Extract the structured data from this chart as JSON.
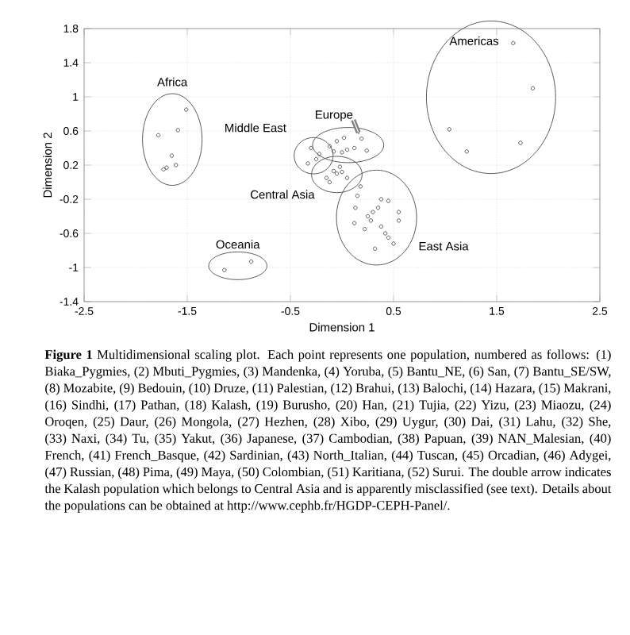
{
  "chart_data": {
    "type": "scatter",
    "xlabel": "Dimension 1",
    "ylabel": "Dimension 2",
    "xlim": [
      -2.5,
      2.5
    ],
    "ylim": [
      -1.4,
      1.8
    ],
    "xticks": [
      -2.5,
      -1.5,
      -0.5,
      0.5,
      1.5,
      2.5
    ],
    "yticks": [
      -1.4,
      -1,
      -0.6,
      -0.2,
      0.2,
      0.6,
      1,
      1.4,
      1.8
    ],
    "grid": true,
    "marker": "circle",
    "series": [
      {
        "name": "Africa",
        "color": "#333333",
        "x": [
          -1.59,
          -1.78,
          -1.7,
          -1.61,
          -1.73,
          -1.51,
          -1.65
        ],
        "values": [
          0.61,
          0.55,
          0.17,
          0.2,
          0.15,
          0.85,
          0.31
        ]
      },
      {
        "name": "Middle East",
        "color": "#333333",
        "x": [
          -0.3,
          -0.22,
          -0.33,
          -0.25
        ],
        "values": [
          0.4,
          0.33,
          0.22,
          0.27
        ]
      },
      {
        "name": "Europe",
        "color": "#333333",
        "x": [
          -0.05,
          -0.12,
          0.02,
          0.05,
          0.0,
          -0.08,
          0.12,
          0.24,
          0.19
        ],
        "values": [
          0.48,
          0.42,
          0.52,
          0.38,
          0.35,
          0.36,
          0.4,
          0.37,
          0.51
        ]
      },
      {
        "name": "Central Asia",
        "color": "#333333",
        "x": [
          -0.15,
          -0.08,
          -0.02,
          -0.12,
          -0.05,
          0.05,
          0.0
        ],
        "values": [
          0.05,
          0.13,
          0.18,
          0.0,
          0.1,
          0.05,
          0.12
        ]
      },
      {
        "name": "East Asia",
        "color": "#333333",
        "x": [
          0.35,
          0.28,
          0.22,
          0.25,
          0.55,
          0.13,
          0.12,
          0.45,
          0.55,
          0.15,
          0.5,
          0.32,
          0.45,
          0.38,
          0.18,
          0.38,
          0.3,
          0.42
        ],
        "values": [
          -0.3,
          -0.45,
          -0.55,
          -0.4,
          -0.45,
          -0.3,
          -0.48,
          -0.22,
          -0.35,
          -0.16,
          -0.72,
          -0.78,
          -0.65,
          -0.52,
          -0.05,
          -0.2,
          -0.35,
          -0.6
        ]
      },
      {
        "name": "Oceania",
        "color": "#333333",
        "x": [
          -1.14,
          -0.88
        ],
        "values": [
          -1.03,
          -0.93
        ]
      },
      {
        "name": "Americas",
        "color": "#333333",
        "x": [
          1.73,
          1.04,
          1.21,
          1.66,
          1.85
        ],
        "values": [
          0.46,
          0.62,
          0.36,
          1.63,
          1.1
        ]
      }
    ],
    "annotations": [
      "**Figure 1** Multidimensional scaling plot. Each point represents one population, numbered as follows: (1) Biaka_Pygmies, (2) Mbuti_Pygmies, (3) Mandenka, (4) Yoruba, (5) Bantu_NE, (6) San, (7) Bantu_SE/SW, (8) Mozabite, (9) Bedouin, (10) Druze, (11) Palestian, (12) Brahui, (13) Balochi, (14) Hazara, (15) Makrani, (16) Sindhi, (17) Pathan, (18) Kalash, (19) Burusho, (20) Han, (21) Tujia, (22) Yizu, (23) Miaozu, (24) Oroqen, (25) Daur, (26) Mongola, (27) Hezhen, (28) Xibo, (29) Uygur, (30) Dai, (31) Lahu, (32) She, (33) Naxi, (34) Tu, (35) Yakut, (36) Japanese, (37) Cambodian, (38) Papuan, (39) NAN_Malesian, (40) French, (41) French_Basque, (42) Sardinian, (43) North_Italian, (44) Tuscan, (45) Orcadian, (46) Adygei, (47) Russian, (48) Pima, (49) Maya, (50) Colombian, (51) Karitiana, (52) Surui. The double arrow indicates the Kalash population which belongs to Central Asia and is apparently misclassified (see text). Details about the populations can be obtained at http://www.cephb.fr/HGDP-CEPH-Panel/."
    ]
  }
}
